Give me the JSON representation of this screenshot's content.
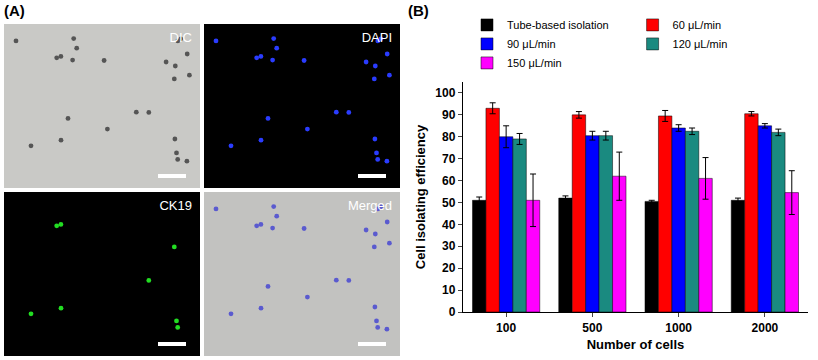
{
  "panel_labels": [
    "(A)",
    "(B)"
  ],
  "panel_a": {
    "images": [
      "DIC",
      "DAPI",
      "CK19",
      "Merged"
    ]
  },
  "chart_data": {
    "type": "bar",
    "x_label": "Number of cells",
    "y_label": "Cell isolating efficiency",
    "categories": [
      "100",
      "500",
      "1000",
      "2000"
    ],
    "series": [
      {
        "name": "Tube-based isolation",
        "color": "#000000",
        "values": [
          51,
          52,
          50.5,
          51
        ],
        "errors": [
          1.5,
          1,
          0.5,
          1
        ]
      },
      {
        "name": "60 μL/min",
        "color": "#ff0000",
        "values": [
          93,
          90,
          89.5,
          90.5
        ],
        "errors": [
          2.5,
          1.5,
          2.5,
          1
        ]
      },
      {
        "name": "90 μL/min",
        "color": "#0000ff",
        "values": [
          80,
          80.5,
          84,
          85
        ],
        "errors": [
          5,
          2,
          1.5,
          1
        ]
      },
      {
        "name": "120 μL/min",
        "color": "#1a8a80",
        "values": [
          79,
          80.5,
          82.5,
          82
        ],
        "errors": [
          2.5,
          2,
          1.5,
          1.5
        ]
      },
      {
        "name": "150 μL/min",
        "color": "#ff00ff",
        "values": [
          51,
          62,
          61,
          54.5
        ],
        "errors": [
          12,
          11,
          9.5,
          10
        ]
      }
    ],
    "ylim": [
      0,
      105
    ],
    "yticks": [
      0,
      10,
      20,
      30,
      40,
      50,
      60,
      70,
      80,
      90,
      100
    ],
    "grid": false,
    "legend": "top"
  }
}
